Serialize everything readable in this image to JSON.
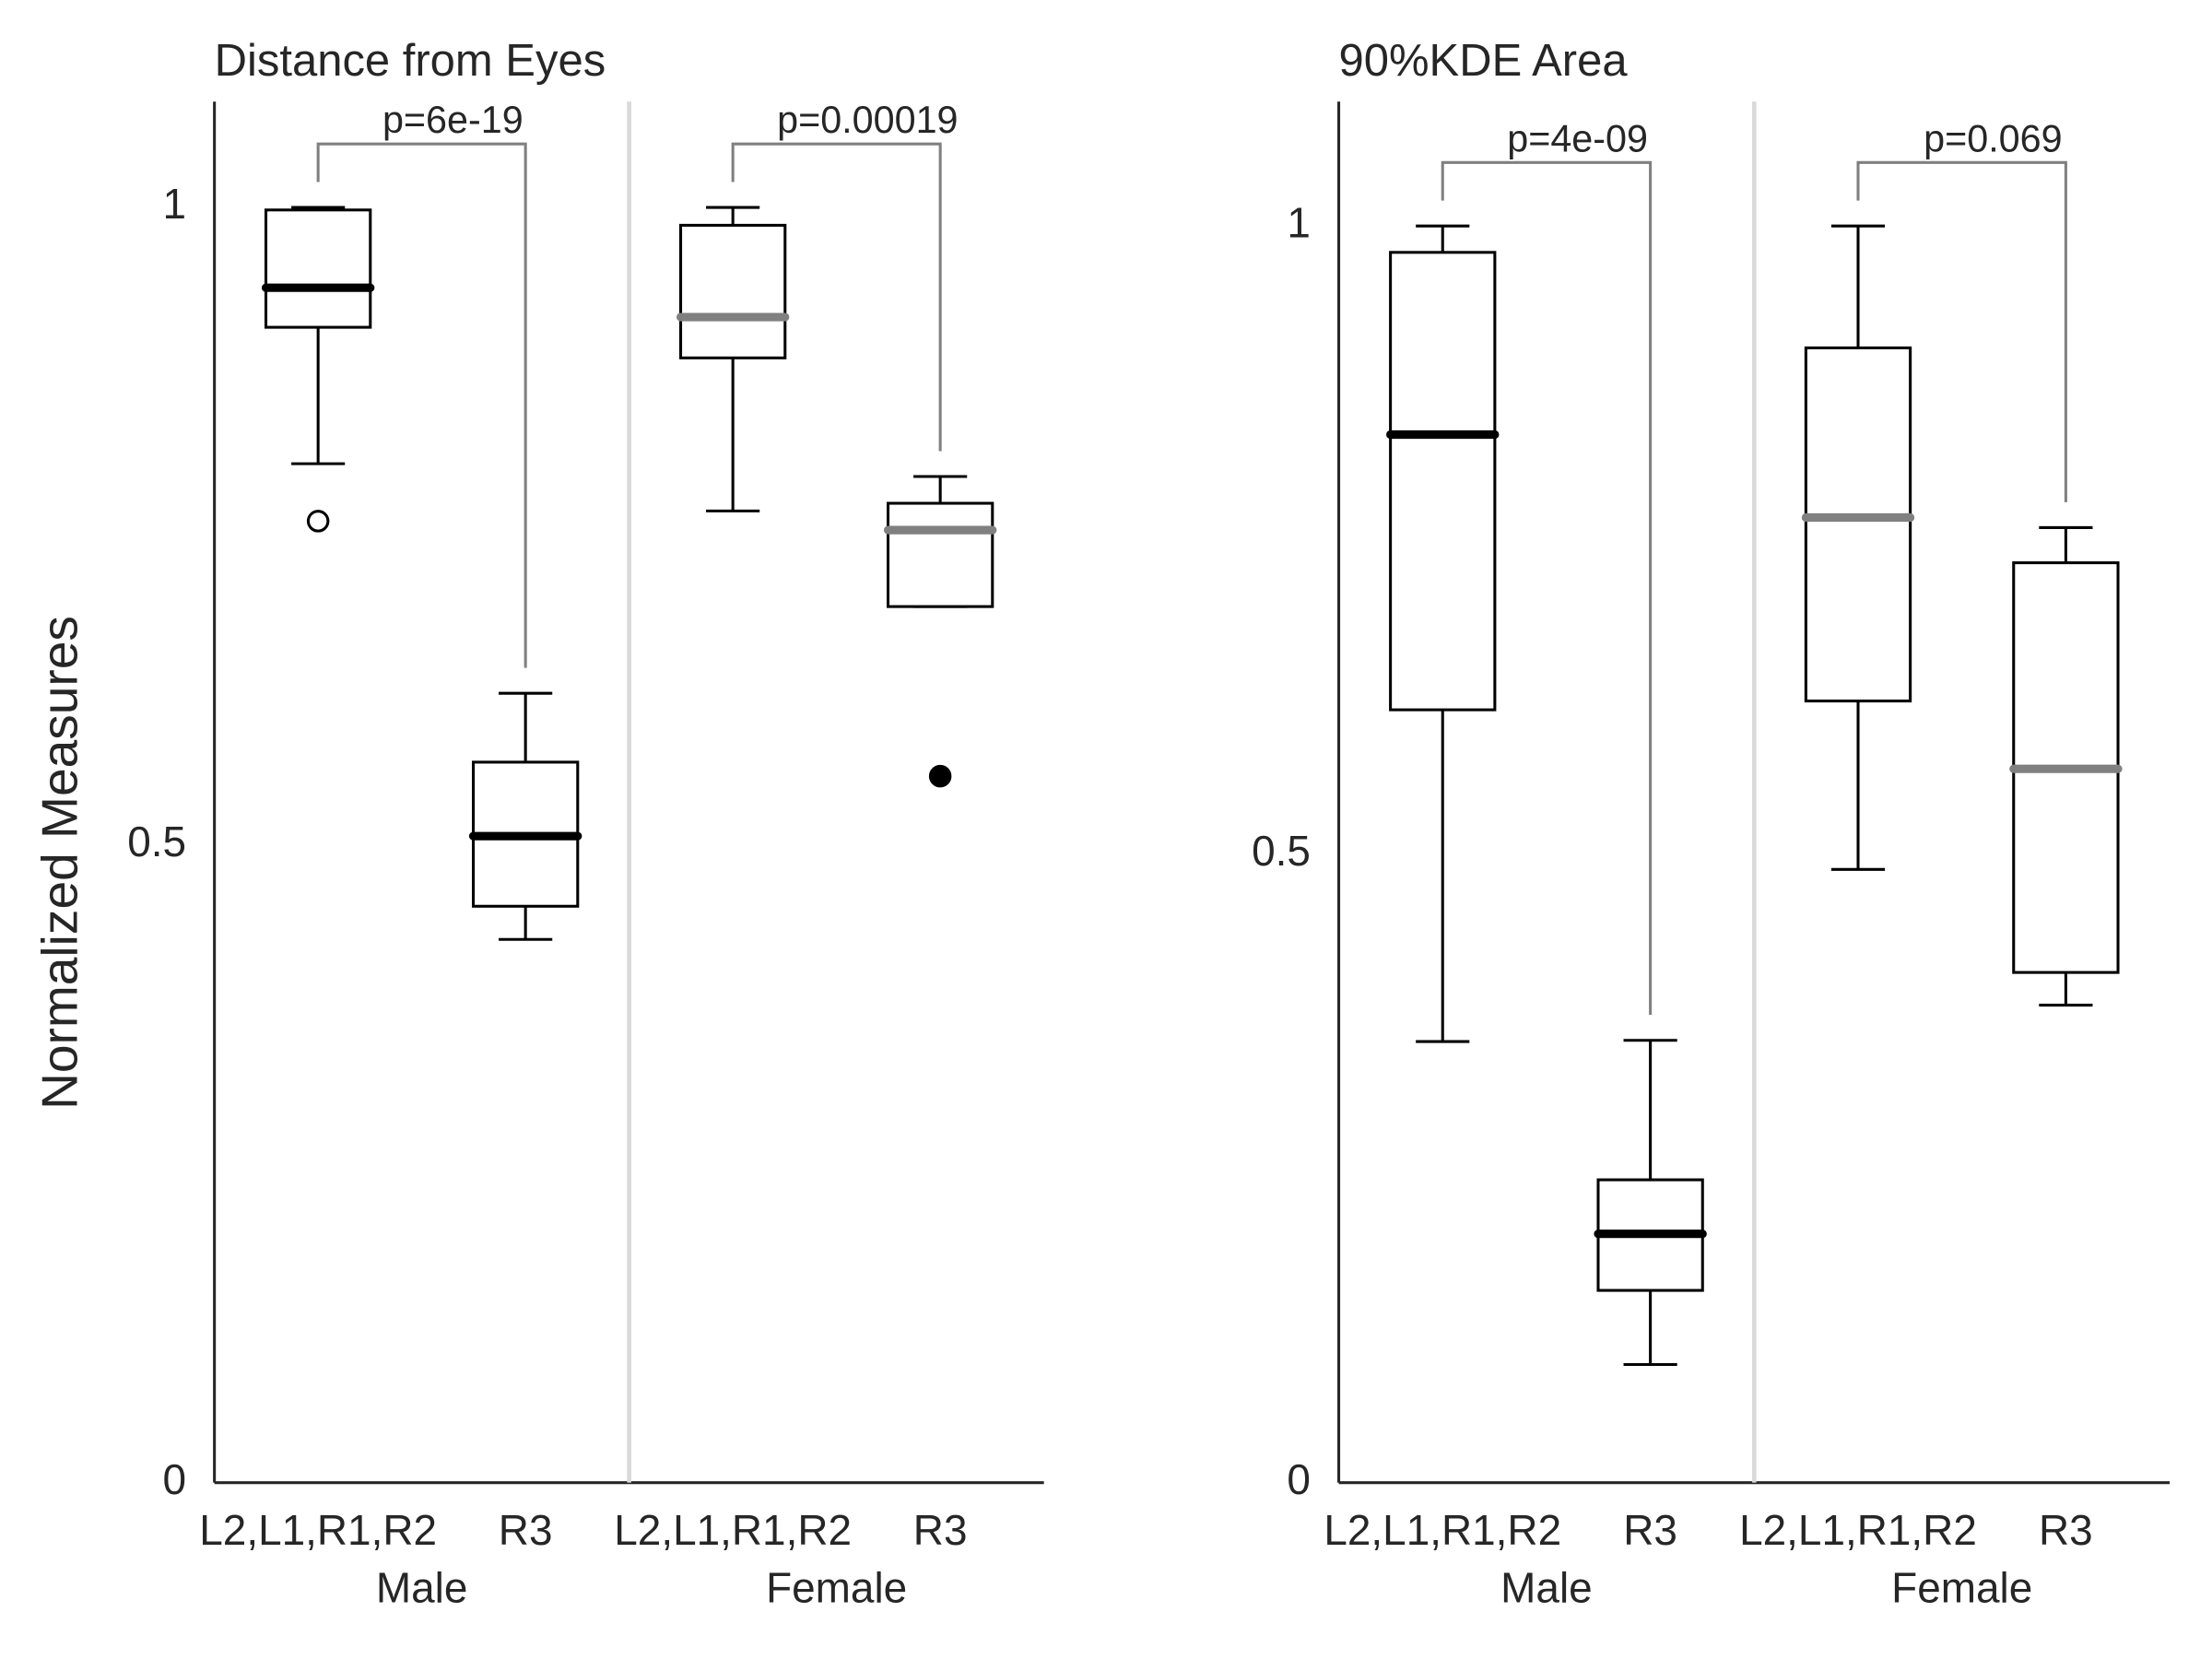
{
  "chart_data": [
    {
      "type": "box",
      "title": "Distance from Eyes",
      "ylabel": "Normalized Measures",
      "ylim": [
        0,
        1.083
      ],
      "yticks": [
        0,
        0.5,
        1
      ],
      "groups": [
        {
          "name": "Male",
          "p_label": "p=6e-19",
          "median_color": "#000000",
          "boxes": [
            {
              "category": "L2,L1,R1,R2",
              "whisker_low": 0.799,
              "q1": 0.906,
              "median": 0.937,
              "q3": 0.998,
              "whisker_high": 1.0,
              "outliers": [
                0.754
              ],
              "outlier_filled": false
            },
            {
              "category": "R3",
              "whisker_low": 0.426,
              "q1": 0.452,
              "median": 0.507,
              "q3": 0.565,
              "whisker_high": 0.619,
              "outliers": [],
              "outlier_filled": false
            }
          ]
        },
        {
          "name": "Female",
          "p_label": "p=0.00019",
          "median_color": "#808080",
          "boxes": [
            {
              "category": "L2,L1,R1,R2",
              "whisker_low": 0.762,
              "q1": 0.882,
              "median": 0.914,
              "q3": 0.986,
              "whisker_high": 1.0,
              "outliers": [],
              "outlier_filled": false
            },
            {
              "category": "R3",
              "whisker_low": 0.687,
              "q1": 0.687,
              "median": 0.747,
              "q3": 0.768,
              "whisker_high": 0.789,
              "outliers": [
                0.554
              ],
              "outlier_filled": true
            }
          ]
        }
      ]
    },
    {
      "type": "box",
      "title": "90%KDE Area",
      "ylim": [
        0,
        1.099
      ],
      "yticks": [
        0,
        0.5,
        1
      ],
      "groups": [
        {
          "name": "Male",
          "p_label": "p=4e-09",
          "median_color": "#000000",
          "boxes": [
            {
              "category": "L2,L1,R1,R2",
              "whisker_low": 0.351,
              "q1": 0.615,
              "median": 0.834,
              "q3": 0.979,
              "whisker_high": 1.0,
              "outliers": [],
              "outlier_filled": false
            },
            {
              "category": "R3",
              "whisker_low": 0.094,
              "q1": 0.153,
              "median": 0.198,
              "q3": 0.241,
              "whisker_high": 0.352,
              "outliers": [],
              "outlier_filled": false
            }
          ]
        },
        {
          "name": "Female",
          "p_label": "p=0.069",
          "median_color": "#808080",
          "boxes": [
            {
              "category": "L2,L1,R1,R2",
              "whisker_low": 0.488,
              "q1": 0.622,
              "median": 0.768,
              "q3": 0.903,
              "whisker_high": 1.0,
              "outliers": [],
              "outlier_filled": false
            },
            {
              "category": "R3",
              "whisker_low": 0.38,
              "q1": 0.406,
              "median": 0.568,
              "q3": 0.732,
              "whisker_high": 0.76,
              "outliers": [],
              "outlier_filled": false
            }
          ]
        }
      ]
    }
  ]
}
